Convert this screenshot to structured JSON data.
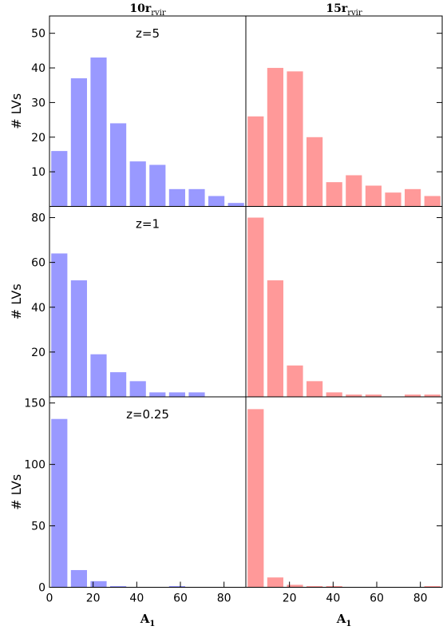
{
  "chart_data": [
    {
      "type": "histogram",
      "title": "10r",
      "title_sub": "rvir",
      "ylabel": "# LVs",
      "annotation": "z=5",
      "color": "#9999ff",
      "bins": [
        0,
        9,
        18,
        27,
        36,
        45,
        54,
        63,
        72,
        81,
        90
      ],
      "values": [
        16,
        37,
        43,
        24,
        13,
        12,
        5,
        5,
        3,
        1
      ],
      "xlim": [
        0,
        90
      ],
      "ylim": [
        0,
        55
      ],
      "yticks": [
        10,
        20,
        30,
        40,
        50
      ]
    },
    {
      "type": "histogram",
      "title": "15r",
      "title_sub": "rvir",
      "color": "#ff9999",
      "bins": [
        0,
        9,
        18,
        27,
        36,
        45,
        54,
        63,
        72,
        81,
        90
      ],
      "values": [
        26,
        40,
        39,
        20,
        7,
        9,
        6,
        4,
        5,
        3
      ],
      "xlim": [
        0,
        90
      ],
      "ylim": [
        0,
        55
      ]
    },
    {
      "type": "histogram",
      "ylabel": "# LVs",
      "annotation": "z=1",
      "color": "#9999ff",
      "bins": [
        0,
        9,
        18,
        27,
        36,
        45,
        54,
        63,
        72,
        81,
        90
      ],
      "values": [
        64,
        52,
        19,
        11,
        7,
        2,
        2,
        2,
        0,
        0
      ],
      "xlim": [
        0,
        90
      ],
      "ylim": [
        0,
        85
      ],
      "yticks": [
        20,
        40,
        60,
        80
      ]
    },
    {
      "type": "histogram",
      "color": "#ff9999",
      "bins": [
        0,
        9,
        18,
        27,
        36,
        45,
        54,
        63,
        72,
        81,
        90
      ],
      "values": [
        80,
        52,
        14,
        7,
        2,
        1,
        1,
        0,
        1,
        1
      ],
      "xlim": [
        0,
        90
      ],
      "ylim": [
        0,
        85
      ]
    },
    {
      "type": "histogram",
      "ylabel": "# LVs",
      "annotation": "z=0.25",
      "xlabel": "A",
      "xlabel_sub": "1",
      "color": "#9999ff",
      "bins": [
        0,
        9,
        18,
        27,
        36,
        45,
        54,
        63,
        72,
        81,
        90
      ],
      "values": [
        137,
        14,
        5,
        1,
        0,
        0,
        1,
        0,
        0,
        0
      ],
      "xlim": [
        0,
        90
      ],
      "ylim": [
        0,
        155
      ],
      "yticks": [
        0,
        50,
        100,
        150
      ],
      "xticks": [
        0,
        20,
        40,
        60,
        80
      ]
    },
    {
      "type": "histogram",
      "xlabel": "A",
      "xlabel_sub": "1",
      "color": "#ff9999",
      "bins": [
        0,
        9,
        18,
        27,
        36,
        45,
        54,
        63,
        72,
        81,
        90
      ],
      "values": [
        145,
        8,
        2,
        1,
        1,
        0,
        0,
        0,
        0,
        1
      ],
      "xlim": [
        0,
        90
      ],
      "ylim": [
        0,
        155
      ],
      "xticks": [
        20,
        40,
        60,
        80
      ]
    }
  ]
}
